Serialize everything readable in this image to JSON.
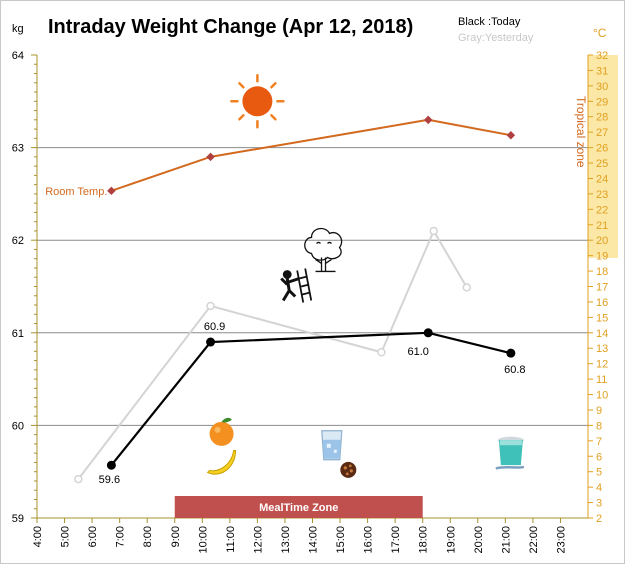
{
  "chart_data": {
    "type": "line",
    "title": "Intraday Weight Change (Apr 12, 2018)",
    "legend": {
      "today": "Black :Today",
      "yesterday": "Gray:Yesterday",
      "placement": "top-right"
    },
    "y_left": {
      "unit": "kg",
      "range": [
        59,
        64
      ],
      "ticks": [
        "59",
        "60",
        "61",
        "62",
        "63",
        "64"
      ]
    },
    "y_right": {
      "unit": "°C",
      "range": [
        2,
        32
      ],
      "ticks": [
        "2",
        "3",
        "4",
        "5",
        "6",
        "7",
        "8",
        "9",
        "10",
        "11",
        "12",
        "13",
        "14",
        "15",
        "16",
        "17",
        "18",
        "19",
        "20",
        "21",
        "22",
        "23",
        "24",
        "25",
        "26",
        "27",
        "28",
        "29",
        "30",
        "31",
        "32"
      ],
      "zone_label": "Tropical zone",
      "zone_range": [
        19,
        32
      ]
    },
    "x": {
      "range": [
        4,
        24
      ],
      "ticks": [
        "4:00",
        "5:00",
        "6:00",
        "7:00",
        "8:00",
        "9:00",
        "10:00",
        "11:00",
        "12:00",
        "13:00",
        "14:00",
        "15:00",
        "16:00",
        "17:00",
        "18:00",
        "19:00",
        "20:00",
        "21:00",
        "22:00",
        "23:00"
      ]
    },
    "series": [
      {
        "name": "Today",
        "axis": "kg",
        "color": "#000000",
        "points": [
          {
            "x": 6.7,
            "y": 59.57,
            "label": "59.6"
          },
          {
            "x": 10.3,
            "y": 60.9,
            "label": "60.9"
          },
          {
            "x": 18.2,
            "y": 61.0,
            "label": "61.0"
          },
          {
            "x": 21.2,
            "y": 60.78,
            "label": "60.8"
          }
        ]
      },
      {
        "name": "Yesterday",
        "axis": "kg",
        "color": "#d4d4d4",
        "segments": [
          [
            {
              "x": 5.5,
              "y": 59.42
            },
            {
              "x": 10.3,
              "y": 61.29
            },
            {
              "x": 16.5,
              "y": 60.79
            },
            {
              "x": 18.4,
              "y": 62.1
            },
            {
              "x": 19.6,
              "y": 61.49
            }
          ]
        ]
      },
      {
        "name": "Room Temp.",
        "axis": "°C",
        "color": "#d2691e",
        "points": [
          {
            "x": 6.7,
            "y": 23.2
          },
          {
            "x": 10.3,
            "y": 25.4
          },
          {
            "x": 18.2,
            "y": 27.8
          },
          {
            "x": 21.2,
            "y": 26.8
          }
        ]
      }
    ],
    "zones": [
      {
        "label": "MealTime Zone",
        "x_range": [
          9.0,
          18.0
        ],
        "color": "#c0504d"
      }
    ],
    "grid": true,
    "annotations": [
      {
        "icon": "sun-icon",
        "x": 12.0,
        "y": 63.5
      },
      {
        "icon": "tree-icon",
        "x": 14.4,
        "y": 61.9
      },
      {
        "icon": "climbing-person-icon",
        "x": 13.3,
        "y": 61.5
      },
      {
        "icon": "orange-icon",
        "x": 10.7,
        "y": 59.93
      },
      {
        "icon": "banana-icon",
        "x": 10.7,
        "y": 59.6
      },
      {
        "icon": "water-glass-icon",
        "x": 14.7,
        "y": 59.78
      },
      {
        "icon": "cookie-icon",
        "x": 15.3,
        "y": 59.52
      },
      {
        "icon": "yogurt-cup-icon",
        "x": 21.2,
        "y": 59.7
      }
    ]
  }
}
